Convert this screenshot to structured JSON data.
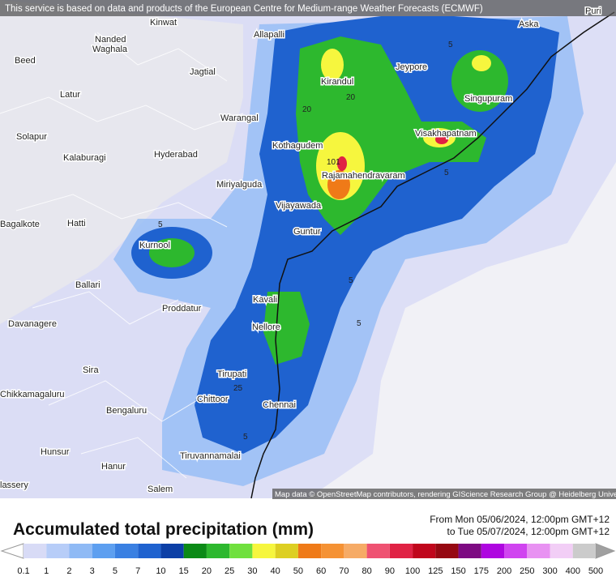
{
  "notice": "This service is based on data and products of the European Centre for Medium-range Weather Forecasts (ECMWF)",
  "attribution": "Map data © OpenStreetMap contributors, rendering GIScience Research Group @ Heidelberg University",
  "title": "Accumulated total precipitation (mm)",
  "period": {
    "from": "From Mon 05/06/2024, 12:00pm GMT+12",
    "to": "to Tue 05/07/2024, 12:00pm GMT+12"
  },
  "places": [
    "Puri",
    "Kinwat",
    "Aska",
    "Allapalli",
    "Nanded",
    "Waghala",
    "Beed",
    "Jeypore",
    "Jagtial",
    "Kirandul",
    "Latur",
    "Singupuram",
    "Warangal",
    "Visakhapatnam",
    "Solapur",
    "Kothagudem",
    "Hyderabad",
    "Kalaburagi",
    "Rajamahendravaram",
    "Miriyalguda",
    "Vijayawada",
    "Bagalkote",
    "Hatti",
    "Guntur",
    "Kurnool",
    "Ballari",
    "Kavali",
    "Proddatur",
    "Davanagere",
    "Nellore",
    "Sira",
    "Tirupati",
    "Chikkamagaluru",
    "Chittoor",
    "Chennai",
    "Bengaluru",
    "Hunsur",
    "Tiruvannamalai",
    "Hanur",
    "lassery",
    "Salem"
  ],
  "contour_labels": [
    "5",
    "20",
    "20",
    "5",
    "5",
    "5",
    "5",
    "25",
    "5",
    "101"
  ],
  "legend": {
    "ticks": [
      0.1,
      1,
      2,
      3,
      5,
      7,
      10,
      15,
      20,
      25,
      30,
      40,
      50,
      60,
      70,
      80,
      90,
      100,
      125,
      150,
      175,
      200,
      250,
      300,
      400,
      500
    ],
    "colors": [
      "#d8dbf6",
      "#b7cdf8",
      "#8fbaf5",
      "#5d9ff0",
      "#3a80e2",
      "#1f62cf",
      "#0c3fa6",
      "#0b8a16",
      "#2db82e",
      "#70e03e",
      "#f6f63e",
      "#ddcf22",
      "#ef7a18",
      "#f59234",
      "#f6ab66",
      "#ef5272",
      "#e02244",
      "#c0061c",
      "#960812",
      "#7d0a82",
      "#ae06e0",
      "#d044f0",
      "#e892f2",
      "#f2cef6",
      "#cbcbcb"
    ]
  }
}
